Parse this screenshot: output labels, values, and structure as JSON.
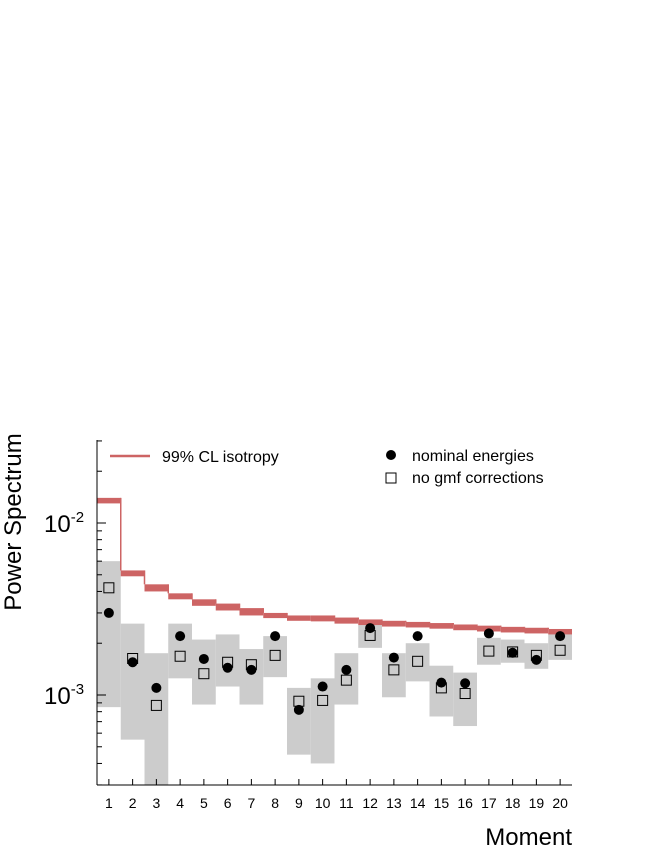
{
  "chart_data": {
    "type": "scatter",
    "title": "",
    "xlabel": "Moment",
    "ylabel": "Power Spectrum",
    "yscale": "log",
    "ylim": [
      0.0003,
      0.03
    ],
    "xlim": [
      0.5,
      20.5
    ],
    "grid": false,
    "legend_position": "top",
    "x": [
      1,
      2,
      3,
      4,
      5,
      6,
      7,
      8,
      9,
      10,
      11,
      12,
      13,
      14,
      15,
      16,
      17,
      18,
      19,
      20
    ],
    "y_ticks": [
      {
        "value": 0.01,
        "base": "10",
        "exp": "-2"
      },
      {
        "value": 0.001,
        "base": "10",
        "exp": "-3"
      }
    ],
    "isotropy_band": {
      "name": "99% CL isotropy",
      "color": "#cd6464",
      "low": [
        0.013,
        0.0049,
        0.004,
        0.0036,
        0.0033,
        0.0031,
        0.0029,
        0.0028,
        0.0027,
        0.00268,
        0.0026,
        0.00255,
        0.0025,
        0.00247,
        0.00243,
        0.00238,
        0.00234,
        0.00231,
        0.00228,
        0.00225
      ],
      "high": [
        0.014,
        0.0053,
        0.0044,
        0.0039,
        0.0036,
        0.0034,
        0.0032,
        0.003,
        0.0029,
        0.0029,
        0.00282,
        0.00275,
        0.0027,
        0.00266,
        0.00262,
        0.00257,
        0.00253,
        0.00249,
        0.00246,
        0.00242
      ]
    },
    "uncertainty_band": {
      "color": "#cccccc",
      "low": [
        0.00085,
        0.00055,
        0.00028,
        0.00125,
        0.00088,
        0.00112,
        0.00088,
        0.00127,
        0.00045,
        0.0004,
        0.00088,
        0.00188,
        0.00097,
        0.0012,
        0.00075,
        0.00066,
        0.0015,
        0.00154,
        0.00142,
        0.0016
      ],
      "high": [
        0.006,
        0.0026,
        0.00175,
        0.0026,
        0.0021,
        0.00225,
        0.00185,
        0.0022,
        0.0011,
        0.00125,
        0.00175,
        0.00255,
        0.00175,
        0.002,
        0.00148,
        0.00135,
        0.00215,
        0.0021,
        0.002,
        0.0023
      ]
    },
    "series": [
      {
        "name": "nominal energies",
        "marker": "filled-circle",
        "values": [
          0.003,
          0.00155,
          0.0011,
          0.0022,
          0.00162,
          0.00144,
          0.0014,
          0.0022,
          0.00082,
          0.00112,
          0.0014,
          0.00245,
          0.00165,
          0.0022,
          0.00118,
          0.00117,
          0.00228,
          0.00176,
          0.0016,
          0.0022
        ]
      },
      {
        "name": "no gmf corrections",
        "marker": "open-square",
        "values": [
          0.0042,
          0.00163,
          0.00087,
          0.00168,
          0.00133,
          0.00155,
          0.0015,
          0.0017,
          0.00092,
          0.00093,
          0.00122,
          0.00222,
          0.0014,
          0.00157,
          0.0011,
          0.00102,
          0.0018,
          0.00178,
          0.0017,
          0.00182
        ]
      }
    ]
  }
}
